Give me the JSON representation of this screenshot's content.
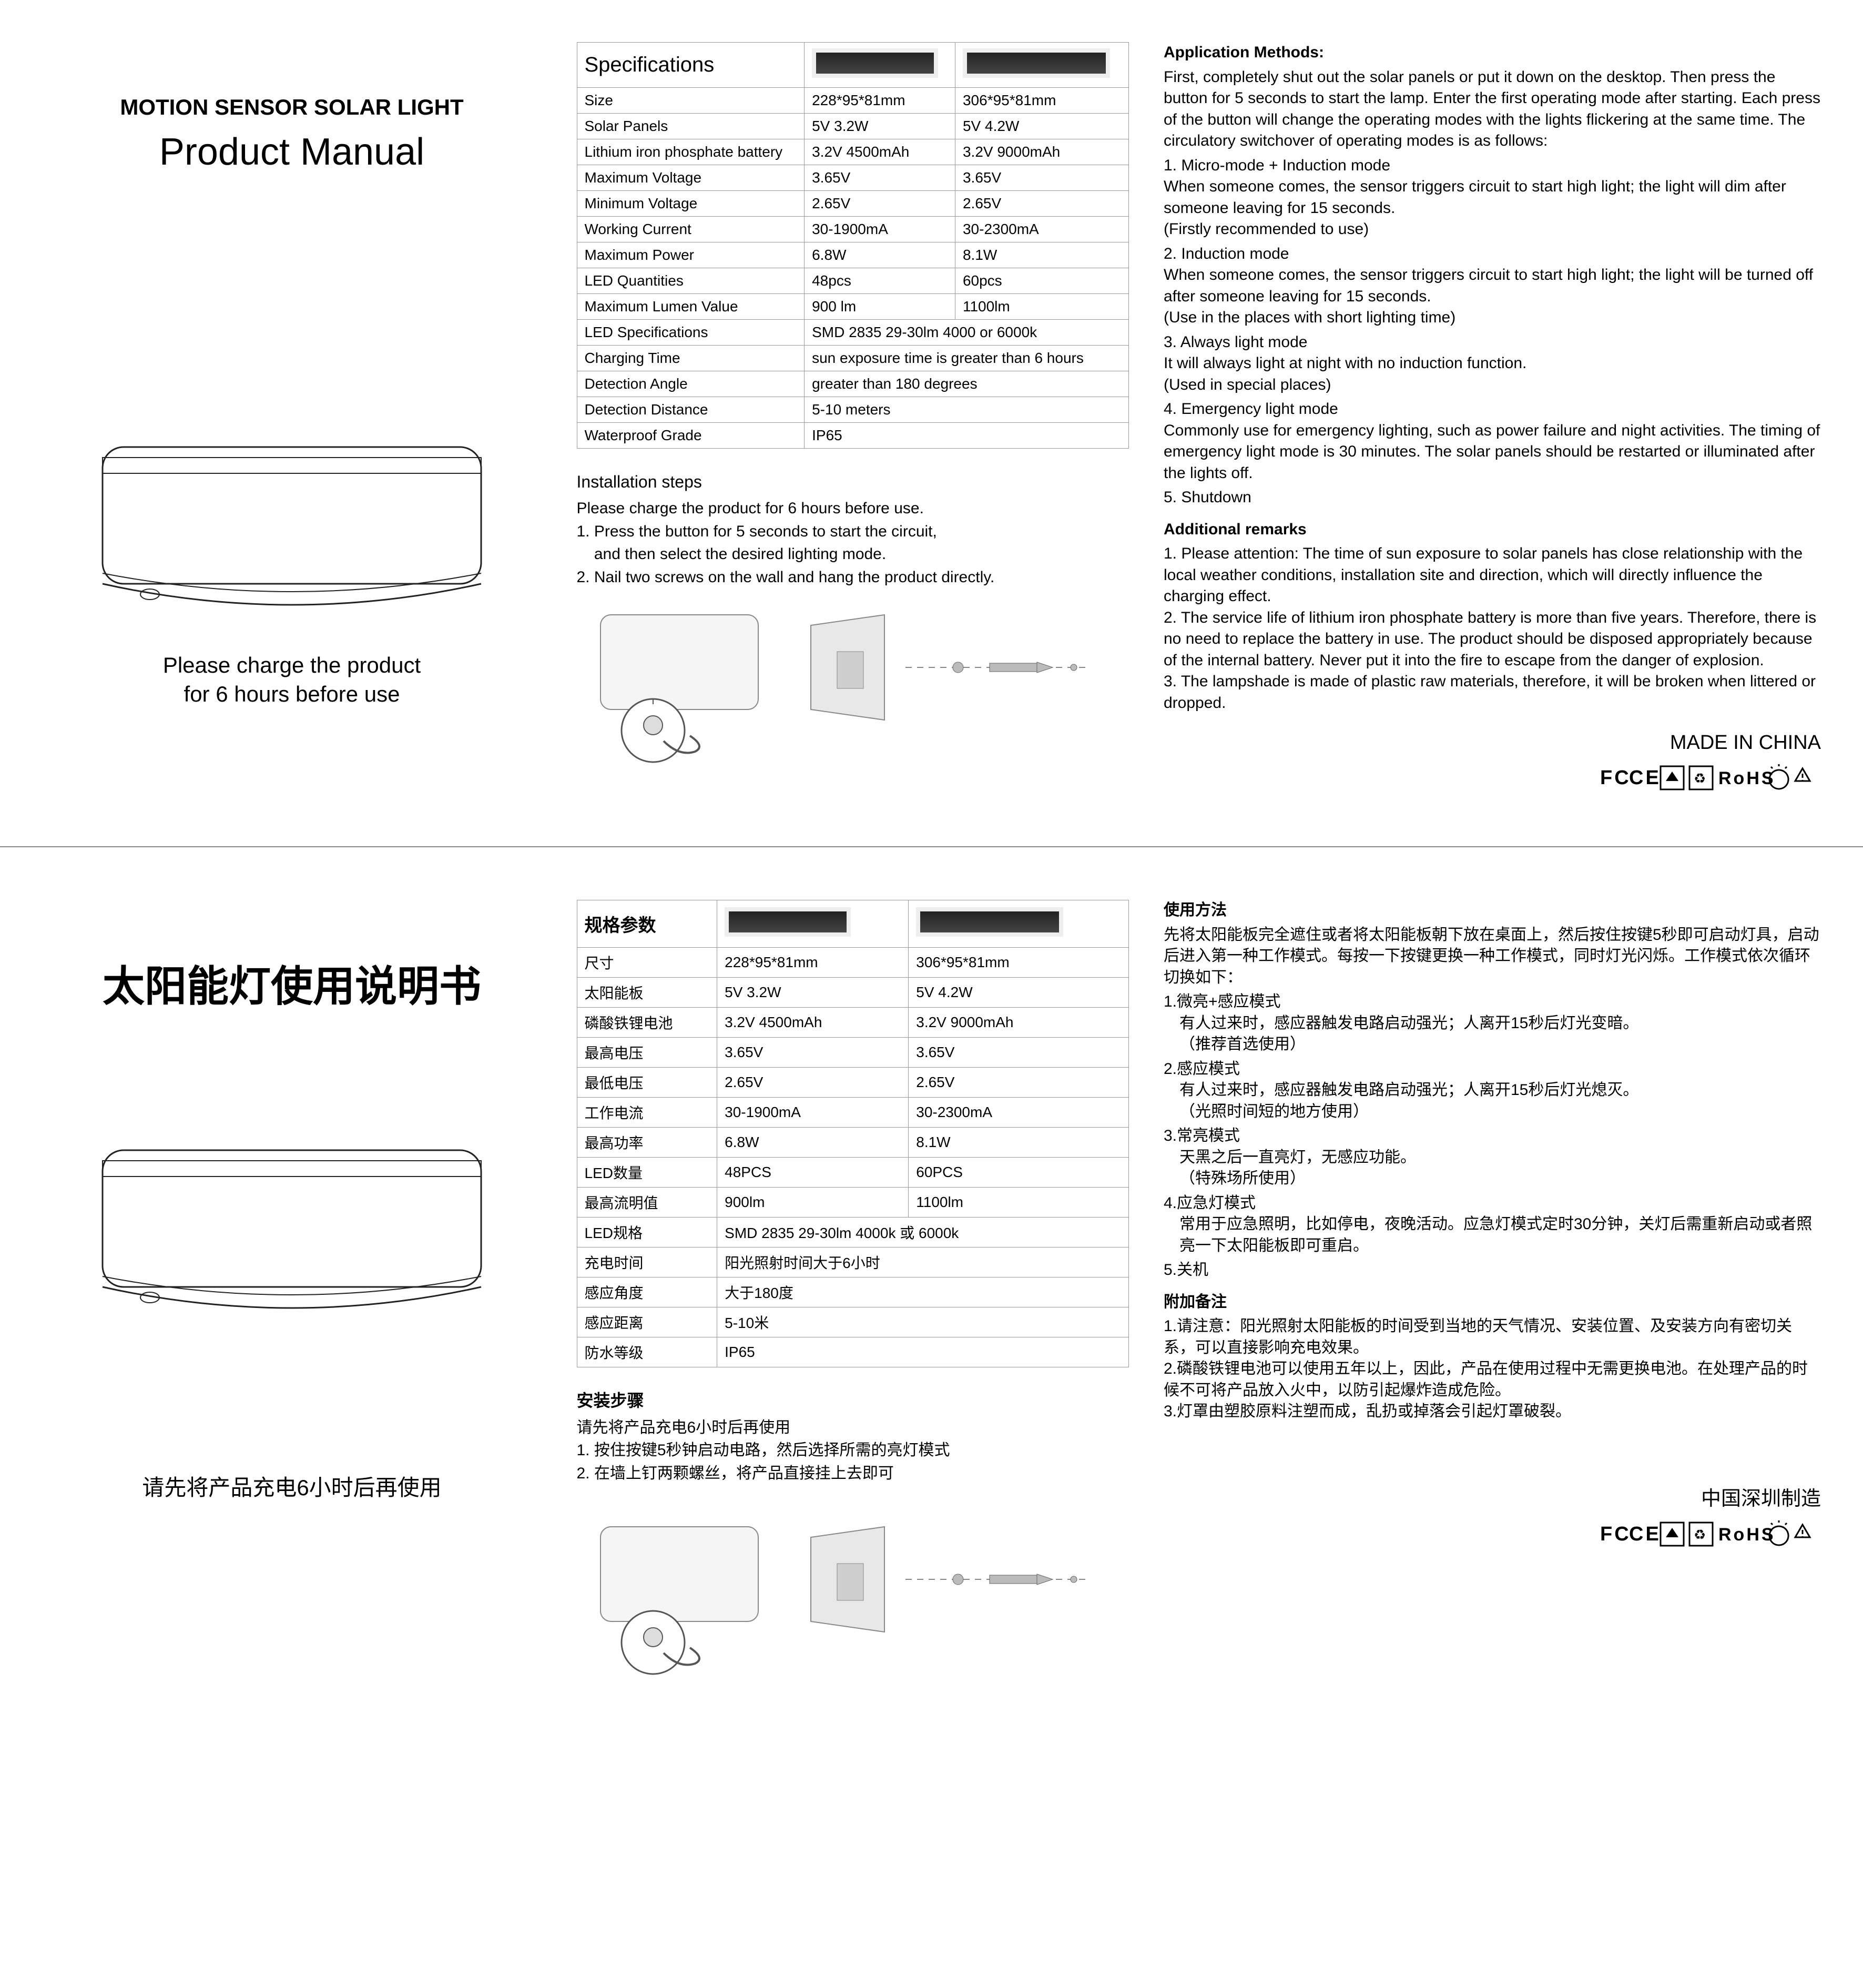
{
  "colors": {
    "text": "#000000",
    "border": "#999999",
    "divider": "#888888",
    "panel_dark": "#2a2a2a",
    "panel_frame": "#eeeeee"
  },
  "fonts": {
    "title_small_pt": 42,
    "title_big_pt": 72,
    "body_pt": 30,
    "table_pt": 28
  },
  "en": {
    "header_small": "MOTION SENSOR SOLAR LIGHT",
    "header_big": "Product Manual",
    "charge_note_l1": "Please charge the product",
    "charge_note_l2": "for 6 hours before use",
    "spec_title": "Specifications",
    "spec_rows": [
      {
        "label": "Size",
        "a": "228*95*81mm",
        "b": "306*95*81mm"
      },
      {
        "label": "Solar Panels",
        "a": "5V  3.2W",
        "b": "5V  4.2W"
      },
      {
        "label": "Lithium iron phosphate battery",
        "a": "3.2V 4500mAh",
        "b": "3.2V 9000mAh"
      },
      {
        "label": "Maximum Voltage",
        "a": "3.65V",
        "b": "3.65V"
      },
      {
        "label": "Minimum Voltage",
        "a": "2.65V",
        "b": "2.65V"
      },
      {
        "label": "Working Current",
        "a": "30-1900mA",
        "b": "30-2300mA"
      },
      {
        "label": "Maximum Power",
        "a": "6.8W",
        "b": "8.1W"
      },
      {
        "label": "LED Quantities",
        "a": "48pcs",
        "b": "60pcs"
      },
      {
        "label": "Maximum Lumen Value",
        "a": "900 lm",
        "b": "1100lm"
      }
    ],
    "spec_span_rows": [
      {
        "label": "LED Specifications",
        "v": "SMD 2835 29-30lm 4000  or  6000k"
      },
      {
        "label": "Charging Time",
        "v": "sun exposure time is greater than 6 hours"
      },
      {
        "label": "Detection Angle",
        "v": "greater than 180 degrees"
      },
      {
        "label": "Detection Distance",
        "v": "5-10 meters"
      },
      {
        "label": "Waterproof Grade",
        "v": "IP65"
      }
    ],
    "install_title": "Installation steps",
    "install_pre": "Please charge the product for 6 hours before use.",
    "install_1": "1. Press the button for 5 seconds to start the circuit,",
    "install_1b": "    and then select the desired lighting mode.",
    "install_2": "2. Nail two screws on the wall and hang the product directly.",
    "app_title": "Application Methods:",
    "app_intro": "First, completely shut out the solar panels or put it down on the desktop. Then press the button for 5 seconds to start the lamp. Enter the first operating mode after starting. Each press of the button will change the operating modes with the lights flickering at the same time. The circulatory switchover of operating modes is as follows:",
    "m1": "1. Micro-mode + Induction mode",
    "m1d": "When someone comes, the sensor triggers circuit to start high light; the light will dim after someone leaving for 15 seconds.",
    "m1n": "(Firstly recommended to use)",
    "m2": "2. Induction mode",
    "m2d": "When someone comes, the sensor triggers circuit to start high light; the light will be turned off after someone leaving for 15 seconds.",
    "m2n": "(Use in the places with short lighting time)",
    "m3": "3. Always light mode",
    "m3d": "It will always light at night with no induction function.",
    "m3n": "(Used in special places)",
    "m4": "4. Emergency light mode",
    "m4d": "Commonly use for emergency lighting, such as power failure and night activities. The timing of emergency light mode is 30 minutes. The solar panels should be restarted or illuminated after the lights off.",
    "m5": "5. Shutdown",
    "rem_title": "Additional remarks",
    "rem1": "1. Please attention: The time of sun exposure to solar panels has close relationship with the local weather conditions, installation site and direction, which will directly influence the charging effect.",
    "rem2": "2. The service life of lithium iron phosphate battery is more than five years. Therefore, there is no need to replace the battery in use. The product should be disposed appropriately because of the internal battery. Never put it into the fire to escape from the danger of explosion.",
    "rem3": "3. The lampshade is made of plastic raw materials, therefore, it will be broken when littered or dropped.",
    "made_in": "MADE IN CHINA"
  },
  "cn": {
    "header_big": "太阳能灯使用说明书",
    "charge_note": "请先将产品充电6小时后再使用",
    "spec_title": "规格参数",
    "spec_rows": [
      {
        "label": "尺寸",
        "a": "228*95*81mm",
        "b": "306*95*81mm"
      },
      {
        "label": "太阳能板",
        "a": "5V  3.2W",
        "b": "5V  4.2W"
      },
      {
        "label": "磷酸铁锂电池",
        "a": "3.2V 4500mAh",
        "b": "3.2V 9000mAh"
      },
      {
        "label": "最高电压",
        "a": "3.65V",
        "b": "3.65V"
      },
      {
        "label": "最低电压",
        "a": "2.65V",
        "b": "2.65V"
      },
      {
        "label": "工作电流",
        "a": "30-1900mA",
        "b": "30-2300mA"
      },
      {
        "label": "最高功率",
        "a": "6.8W",
        "b": "8.1W"
      },
      {
        "label": "LED数量",
        "a": "48PCS",
        "b": "60PCS"
      },
      {
        "label": "最高流明值",
        "a": "900lm",
        "b": "1100lm"
      }
    ],
    "spec_span_rows": [
      {
        "label": "LED规格",
        "v": "SMD 2835 29-30lm 4000k 或 6000k"
      },
      {
        "label": "充电时间",
        "v": "阳光照射时间大于6小时"
      },
      {
        "label": "感应角度",
        "v": "大于180度"
      },
      {
        "label": "感应距离",
        "v": "5-10米"
      },
      {
        "label": "防水等级",
        "v": "IP65"
      }
    ],
    "install_title": "安装步骤",
    "install_pre": "请先将产品充电6小时后再使用",
    "install_1": "1. 按住按键5秒钟启动电路，然后选择所需的亮灯模式",
    "install_2": "2. 在墙上钉两颗螺丝，将产品直接挂上去即可",
    "app_title": "使用方法",
    "app_intro": "先将太阳能板完全遮住或者将太阳能板朝下放在桌面上，然后按住按键5秒即可启动灯具，启动后进入第一种工作模式。每按一下按键更换一种工作模式，同时灯光闪烁。工作模式依次循环切换如下：",
    "m1": "1.微亮+感应模式",
    "m1d": "有人过来时，感应器触发电路启动强光；人离开15秒后灯光变暗。",
    "m1n": "（推荐首选使用）",
    "m2": "2.感应模式",
    "m2d": "有人过来时，感应器触发电路启动强光；人离开15秒后灯光熄灭。",
    "m2n": "（光照时间短的地方使用）",
    "m3": "3.常亮模式",
    "m3d": "天黑之后一直亮灯，无感应功能。",
    "m3n": "（特殊场所使用）",
    "m4": "4.应急灯模式",
    "m4d": "常用于应急照明，比如停电，夜晚活动。应急灯模式定时30分钟，关灯后需重新启动或者照亮一下太阳能板即可重启。",
    "m5": "5.关机",
    "rem_title": "附加备注",
    "rem1": "1.请注意：阳光照射太阳能板的时间受到当地的天气情况、安装位置、及安装方向有密切关系，可以直接影响充电效果。",
    "rem2": "2.磷酸铁锂电池可以使用五年以上，因此，产品在使用过程中无需更换电池。在处理产品的时候不可将产品放入火中，以防引起爆炸造成危险。",
    "rem3": "3.灯罩由塑胶原料注塑而成，乱扔或掉落会引起灯罩破裂。",
    "made_in": "中国深圳制造"
  },
  "cert_text": "FC CE ☂ ♻ RoHS ⚠ ♲"
}
